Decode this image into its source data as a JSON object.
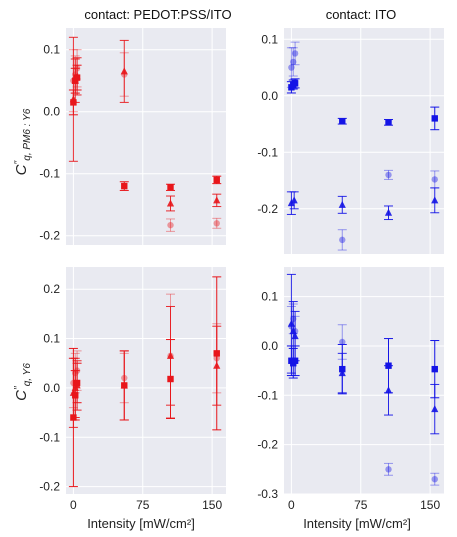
{
  "colors": {
    "panel_bg": "#e9eaf1",
    "grid": "#ffffff",
    "red": "#e8161b",
    "blue": "#1414e6"
  },
  "chart_data": [
    {
      "type": "scatter",
      "title": "contact: PEDOT:PSS/ITO",
      "ylabel": "C''q, PM6 : Y6",
      "xlabel": "",
      "xlim": [
        -8,
        165
      ],
      "ylim": [
        -0.215,
        0.135
      ],
      "xticks": [
        0,
        75,
        150
      ],
      "yticks": [
        -0.2,
        -0.1,
        0.0,
        0.1
      ],
      "ytick_labels": [
        "-0.2",
        "-0.1",
        "0.0",
        "0.1"
      ],
      "grid": true,
      "color": "red",
      "series": [
        {
          "marker": "circle",
          "alpha": 0.4,
          "points": [
            {
              "x": 0,
              "y": 0.05,
              "e": 0.05
            },
            {
              "x": 2,
              "y": 0.06,
              "e": 0.03
            },
            {
              "x": 4,
              "y": 0.07,
              "e": 0.03
            },
            {
              "x": 55,
              "y": 0.06,
              "e": 0.035
            },
            {
              "x": 105,
              "y": -0.183,
              "e": 0.01
            },
            {
              "x": 155,
              "y": -0.18,
              "e": 0.008
            }
          ]
        },
        {
          "marker": "triangle",
          "alpha": 0.9,
          "points": [
            {
              "x": 0,
              "y": 0.02,
              "e": 0.1
            },
            {
              "x": 2,
              "y": 0.05,
              "e": 0.035
            },
            {
              "x": 4,
              "y": 0.057,
              "e": 0.03
            },
            {
              "x": 55,
              "y": 0.065,
              "e": 0.05
            },
            {
              "x": 105,
              "y": -0.148,
              "e": 0.012
            },
            {
              "x": 155,
              "y": -0.143,
              "e": 0.01
            }
          ]
        },
        {
          "marker": "square",
          "alpha": 1.0,
          "points": [
            {
              "x": 0,
              "y": 0.015,
              "e": 0.02
            },
            {
              "x": 2,
              "y": 0.05,
              "e": 0.02
            },
            {
              "x": 4,
              "y": 0.055,
              "e": 0.02
            },
            {
              "x": 55,
              "y": -0.12,
              "e": 0.007
            },
            {
              "x": 105,
              "y": -0.122,
              "e": 0.005
            },
            {
              "x": 155,
              "y": -0.11,
              "e": 0.006
            }
          ]
        }
      ]
    },
    {
      "type": "scatter",
      "title": "contact: ITO",
      "ylabel": "",
      "xlabel": "",
      "xlim": [
        -8,
        165
      ],
      "ylim": [
        -0.28,
        0.12
      ],
      "xticks": [
        0,
        75,
        150
      ],
      "yticks": [
        -0.2,
        -0.1,
        0.0,
        0.1
      ],
      "ytick_labels": [
        "-0.2",
        "-0.1",
        "0.0",
        "0.1"
      ],
      "grid": true,
      "color": "blue",
      "series": [
        {
          "marker": "circle",
          "alpha": 0.4,
          "points": [
            {
              "x": 0,
              "y": 0.05,
              "e": 0.035
            },
            {
              "x": 2,
              "y": 0.06,
              "e": 0.025
            },
            {
              "x": 4,
              "y": 0.075,
              "e": 0.02
            },
            {
              "x": 55,
              "y": -0.255,
              "e": 0.018
            },
            {
              "x": 105,
              "y": -0.14,
              "e": 0.008
            },
            {
              "x": 155,
              "y": -0.148,
              "e": 0.015
            }
          ]
        },
        {
          "marker": "triangle",
          "alpha": 0.9,
          "points": [
            {
              "x": 0,
              "y": -0.19,
              "e": 0.02
            },
            {
              "x": 3,
              "y": -0.185,
              "e": 0.015
            },
            {
              "x": 55,
              "y": -0.193,
              "e": 0.015
            },
            {
              "x": 105,
              "y": -0.207,
              "e": 0.012
            },
            {
              "x": 155,
              "y": -0.185,
              "e": 0.022
            }
          ]
        },
        {
          "marker": "square",
          "alpha": 1.0,
          "points": [
            {
              "x": 0,
              "y": 0.015,
              "e": 0.01
            },
            {
              "x": 2,
              "y": 0.02,
              "e": 0.008
            },
            {
              "x": 4,
              "y": 0.022,
              "e": 0.008
            },
            {
              "x": 55,
              "y": -0.045,
              "e": 0.005
            },
            {
              "x": 105,
              "y": -0.047,
              "e": 0.005
            },
            {
              "x": 155,
              "y": -0.04,
              "e": 0.02
            }
          ]
        }
      ]
    },
    {
      "type": "scatter",
      "title": "",
      "ylabel": "C''q, Y6",
      "xlabel": "Intensity [mW/cm²]",
      "xlim": [
        -8,
        165
      ],
      "ylim": [
        -0.215,
        0.245
      ],
      "xticks": [
        0,
        75,
        150
      ],
      "yticks": [
        -0.2,
        -0.1,
        0.0,
        0.1,
        0.2
      ],
      "ytick_labels": [
        "-0.2",
        "-0.1",
        "0.0",
        "0.1",
        "0.2"
      ],
      "grid": true,
      "color": "red",
      "series": [
        {
          "marker": "circle",
          "alpha": 0.4,
          "points": [
            {
              "x": 0,
              "y": 0.01,
              "e": 0.05
            },
            {
              "x": 2,
              "y": 0.03,
              "e": 0.04
            },
            {
              "x": 4,
              "y": 0.035,
              "e": 0.04
            },
            {
              "x": 55,
              "y": 0.02,
              "e": 0.05
            },
            {
              "x": 105,
              "y": 0.065,
              "e": 0.125
            },
            {
              "x": 155,
              "y": 0.06,
              "e": 0.07
            }
          ]
        },
        {
          "marker": "triangle",
          "alpha": 0.9,
          "points": [
            {
              "x": 0,
              "y": -0.01,
              "e": 0.07
            },
            {
              "x": 2,
              "y": 0.0,
              "e": 0.06
            },
            {
              "x": 4,
              "y": 0.005,
              "e": 0.05
            },
            {
              "x": 55,
              "y": 0.005,
              "e": 0.07
            },
            {
              "x": 105,
              "y": 0.065,
              "e": 0.1
            },
            {
              "x": 155,
              "y": 0.045,
              "e": 0.08
            }
          ]
        },
        {
          "marker": "square",
          "alpha": 1.0,
          "points": [
            {
              "x": 0,
              "y": -0.06,
              "e": 0.14
            },
            {
              "x": 2,
              "y": -0.015,
              "e": 0.05
            },
            {
              "x": 4,
              "y": 0.01,
              "e": 0.04
            },
            {
              "x": 55,
              "y": 0.005,
              "e": 0.07
            },
            {
              "x": 105,
              "y": 0.018,
              "e": 0.08
            },
            {
              "x": 155,
              "y": 0.07,
              "e": 0.155
            }
          ]
        }
      ]
    },
    {
      "type": "scatter",
      "title": "",
      "ylabel": "",
      "xlabel": "Intensity [mW/cm²]",
      "xlim": [
        -8,
        165
      ],
      "ylim": [
        -0.3,
        0.16
      ],
      "xticks": [
        0,
        75,
        150
      ],
      "yticks": [
        -0.3,
        -0.2,
        -0.1,
        0.0,
        0.1
      ],
      "ytick_labels": [
        "-0.3",
        "-0.2",
        "-0.1",
        "0.0",
        "0.1"
      ],
      "grid": true,
      "color": "blue",
      "series": [
        {
          "marker": "circle",
          "alpha": 0.4,
          "points": [
            {
              "x": 0,
              "y": 0.04,
              "e": 0.04
            },
            {
              "x": 2,
              "y": 0.055,
              "e": 0.03
            },
            {
              "x": 4,
              "y": 0.03,
              "e": 0.03
            },
            {
              "x": 55,
              "y": 0.008,
              "e": 0.035
            },
            {
              "x": 105,
              "y": -0.25,
              "e": 0.012
            },
            {
              "x": 155,
              "y": -0.27,
              "e": 0.012
            }
          ]
        },
        {
          "marker": "triangle",
          "alpha": 0.9,
          "points": [
            {
              "x": 0,
              "y": 0.045,
              "e": 0.1
            },
            {
              "x": 2,
              "y": 0.03,
              "e": 0.06
            },
            {
              "x": 4,
              "y": 0.02,
              "e": 0.05
            },
            {
              "x": 55,
              "y": -0.055,
              "e": 0.04
            },
            {
              "x": 105,
              "y": -0.09,
              "e": 0.05
            },
            {
              "x": 155,
              "y": -0.128,
              "e": 0.05
            }
          ]
        },
        {
          "marker": "square",
          "alpha": 1.0,
          "points": [
            {
              "x": 0,
              "y": -0.03,
              "e": 0.03
            },
            {
              "x": 2,
              "y": -0.035,
              "e": 0.03
            },
            {
              "x": 4,
              "y": -0.03,
              "e": 0.03
            },
            {
              "x": 55,
              "y": -0.047,
              "e": 0.05
            },
            {
              "x": 105,
              "y": -0.04,
              "e": 0.055
            },
            {
              "x": 155,
              "y": -0.047,
              "e": 0.058
            }
          ]
        }
      ]
    }
  ]
}
